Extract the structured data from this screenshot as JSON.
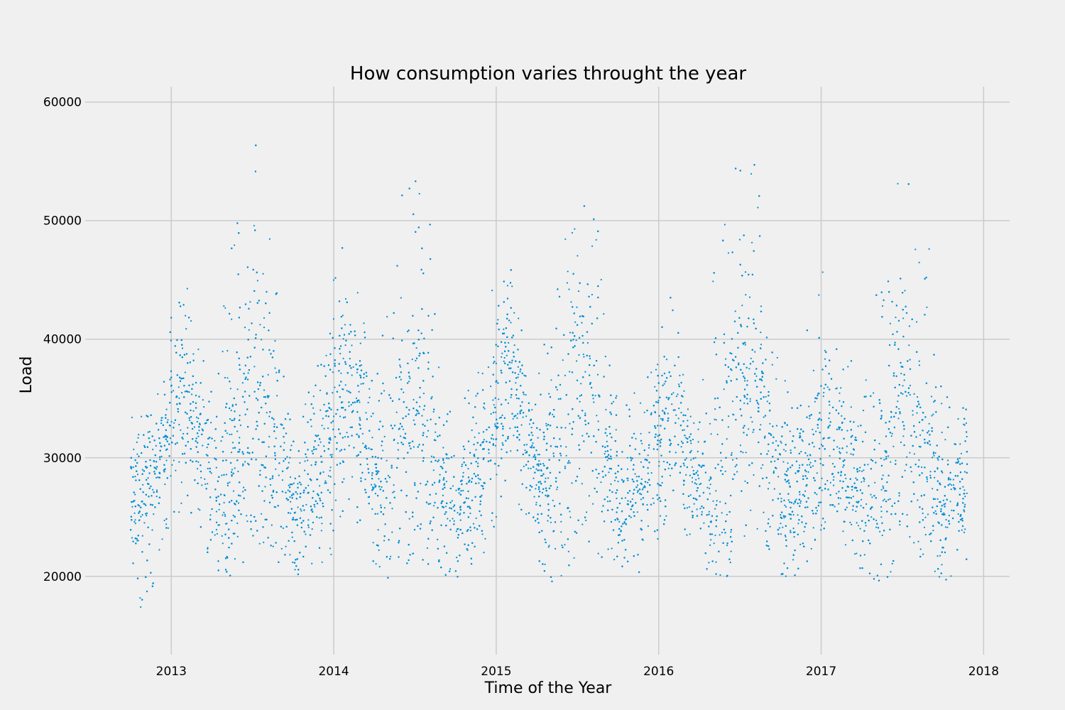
{
  "chart_data": {
    "type": "scatter",
    "title": "How consumption varies throught the year",
    "xlabel": "Time of the Year",
    "ylabel": "Load",
    "x_range": [
      "2012-10-01",
      "2017-11-30"
    ],
    "xlim": [
      2012.47,
      2018.16
    ],
    "ylim": [
      13400,
      61300
    ],
    "x_ticks": [
      2013,
      2014,
      2015,
      2016,
      2017,
      2018
    ],
    "x_tick_labels": [
      "2013",
      "2014",
      "2015",
      "2016",
      "2017",
      "2018"
    ],
    "y_ticks": [
      20000,
      30000,
      40000,
      50000,
      60000
    ],
    "y_tick_labels": [
      "20000",
      "30000",
      "40000",
      "50000",
      "60000"
    ],
    "grid": true,
    "legend": "none",
    "marker": "small dots",
    "colors": {
      "points": "#008fd5",
      "background": "#f0f0f0",
      "grid": "#cbcbcb"
    },
    "series": [
      {
        "x": [
          2012.75,
          2012.83,
          2012.92,
          2013.0,
          2013.08,
          2013.17,
          2013.25,
          2013.33,
          2013.42,
          2013.5,
          2013.58,
          2013.67,
          2013.75,
          2013.83,
          2013.92,
          2014.0,
          2014.08,
          2014.17,
          2014.25,
          2014.33,
          2014.42,
          2014.5,
          2014.58,
          2014.67,
          2014.75,
          2014.83,
          2014.92,
          2015.0,
          2015.08,
          2015.17,
          2015.25,
          2015.33,
          2015.42,
          2015.5,
          2015.58,
          2015.67,
          2015.75,
          2015.83,
          2015.92,
          2016.0,
          2016.08,
          2016.17,
          2016.25,
          2016.33,
          2016.42,
          2016.5,
          2016.58,
          2016.67,
          2016.75,
          2016.83,
          2016.92,
          2017.0,
          2017.08,
          2017.17,
          2017.25,
          2017.33,
          2017.42,
          2017.5,
          2017.58,
          2017.67,
          2017.75,
          2017.83,
          2017.9
        ],
        "y": [
          28000,
          27000,
          29500,
          32500,
          36000,
          33000,
          29000,
          26000,
          31000,
          37000,
          33000,
          30000,
          26000,
          26500,
          30000,
          34000,
          37500,
          33500,
          28500,
          27000,
          31500,
          34000,
          31000,
          28000,
          25500,
          27000,
          30000,
          34500,
          38000,
          34000,
          29000,
          26500,
          30500,
          37500,
          36000,
          31000,
          26500,
          27000,
          29000,
          33000,
          33500,
          31000,
          28000,
          26000,
          30500,
          36500,
          37000,
          32000,
          27000,
          27000,
          29500,
          31000,
          31500,
          30000,
          27500,
          26500,
          31000,
          35500,
          33000,
          29000,
          26000,
          27000,
          28500
        ],
        "y_min": [
          21500,
          14700,
          21500,
          24000,
          26000,
          24000,
          21000,
          19800,
          20500,
          22500,
          22000,
          21000,
          19800,
          20000,
          21000,
          22000,
          26000,
          24000,
          21000,
          19800,
          20500,
          22000,
          21000,
          20000,
          19800,
          20500,
          21500,
          24500,
          28000,
          25000,
          21000,
          19500,
          20000,
          22000,
          22500,
          21000,
          19800,
          20000,
          20500,
          23000,
          26000,
          23500,
          21000,
          19500,
          20000,
          22000,
          24000,
          22500,
          20000,
          20000,
          21000,
          23000,
          24500,
          22000,
          20500,
          19500,
          20000,
          23500,
          22000,
          21000,
          19500,
          20000,
          20500
        ],
        "y_max": [
          37000,
          33000,
          36500,
          42000,
          45500,
          40000,
          35500,
          44000,
          52000,
          59200,
          49000,
          47500,
          33000,
          35500,
          40500,
          49800,
          47000,
          44000,
          35000,
          45000,
          53000,
          55000,
          52500,
          37000,
          33000,
          36500,
          41000,
          47000,
          49500,
          40500,
          36000,
          45500,
          52000,
          55200,
          53200,
          46000,
          34500,
          36500,
          36000,
          44000,
          43800,
          38000,
          33500,
          45000,
          53000,
          56300,
          56200,
          48000,
          37000,
          36000,
          41500,
          46000,
          44400,
          39500,
          36000,
          47500,
          53600,
          55300,
          52800,
          47600,
          35500,
          34500,
          35500
        ]
      }
    ]
  }
}
